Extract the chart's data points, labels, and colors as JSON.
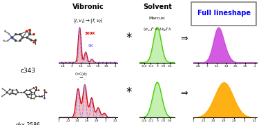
{
  "bg_color": "white",
  "vibronic_header": "Vibronic",
  "vibronic_sub": "|i,v_i⟩ → |f,v_f⟩",
  "solvent_header": "Solvent",
  "solvent_sub1": "Marcus:",
  "solvent_sub2": "(σₘ)² = 2kₙTλ",
  "full_header": "Full lineshape",
  "mol1_name": "c343",
  "mol2_name": "nkx-2586",
  "c343_vib_300K_color": "#dd0000",
  "c343_vib_0K_color": "#8888ff",
  "c343_full_color": "#cc44dd",
  "nkx_vib_300K_color": "#dd0000",
  "nkx_vib_0K_color": "#8888ff",
  "nkx_full_color": "#ffaa00",
  "solvent_color": "#44cc00",
  "mol_bg": "#cccccc",
  "header_bold": true,
  "row1_vib_xlim": [
    2.7,
    4.05
  ],
  "row1_vib_xticks": [
    2.8,
    3.0,
    3.2,
    3.4,
    3.6,
    3.8,
    4.0
  ],
  "row1_vib_xticklabels": [
    "2.8",
    "3",
    "3.2",
    "3.4",
    "3.6",
    "3.8",
    "4"
  ],
  "row2_vib_xlim": [
    2.0,
    3.25
  ],
  "row2_vib_xticks": [
    2.0,
    2.2,
    2.4,
    2.6,
    2.8,
    3.0,
    3.2
  ],
  "row2_vib_xticklabels": [
    "2",
    "2.2",
    "2.4",
    "2.6",
    "2.8",
    "3",
    "3.2"
  ],
  "sol_xticks": [
    -0.4,
    -0.2,
    0.0,
    0.2,
    0.4
  ],
  "sol_xticklabels": [
    "-0.4",
    "-0.2",
    "0",
    "0.2",
    "0.4"
  ],
  "row1_full_xlim": [
    2.7,
    4.05
  ],
  "row1_full_xticks": [
    2.8,
    3.0,
    3.2,
    3.4,
    3.6,
    3.8,
    4.0
  ],
  "row1_full_xticklabels": [
    "2.8",
    "3",
    "3.2",
    "3.4",
    "3.6",
    "3.8",
    "4"
  ],
  "row2_full_xlim": [
    2.0,
    3.25
  ],
  "row2_full_xticks": [
    2.0,
    2.2,
    2.4,
    2.6,
    2.8,
    3.0,
    3.2
  ],
  "row2_full_xticklabels": [
    "2",
    "2.2",
    "2.4",
    "2.6",
    "2.8",
    "3",
    "3.2"
  ]
}
